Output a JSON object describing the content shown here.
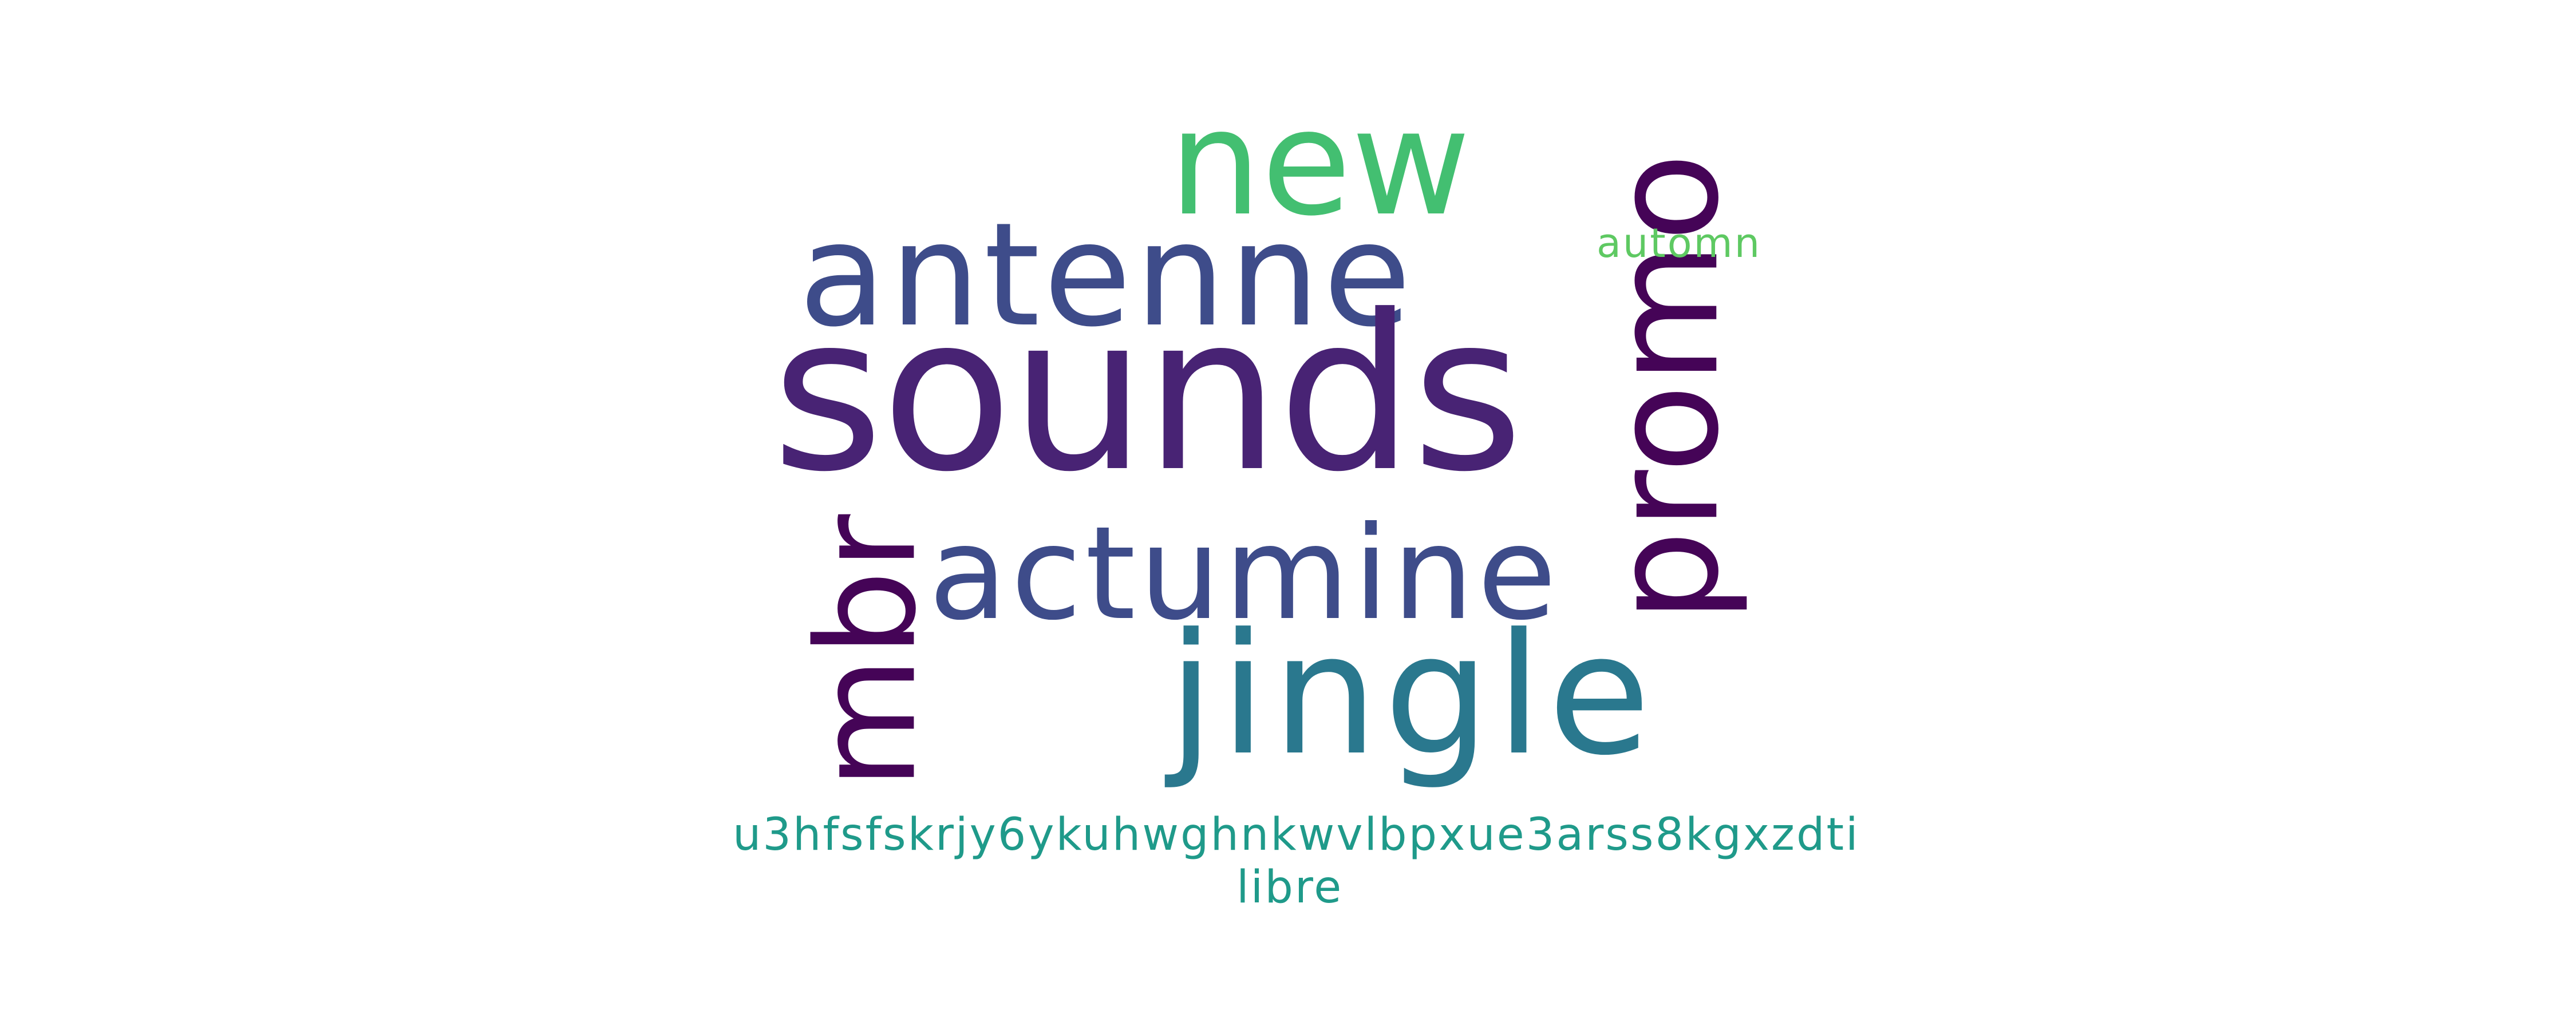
{
  "words": [
    {
      "text": "sounds",
      "color": "#482374"
    },
    {
      "text": "antenne",
      "color": "#3e4c8a"
    },
    {
      "text": "new",
      "color": "#43bf71"
    },
    {
      "text": "promo",
      "color": "#450457"
    },
    {
      "text": "mbr",
      "color": "#450457"
    },
    {
      "text": "actumine",
      "color": "#3e4c8a"
    },
    {
      "text": "jingle",
      "color": "#2a788e"
    },
    {
      "text": "automn",
      "color": "#5ec962"
    },
    {
      "text": "u3hfsfskrjy6ykuhwghnkwvlbpxue3arss8kgxzdti",
      "color": "#1f9a8a"
    },
    {
      "text": "libre",
      "color": "#1f9a8a"
    }
  ]
}
